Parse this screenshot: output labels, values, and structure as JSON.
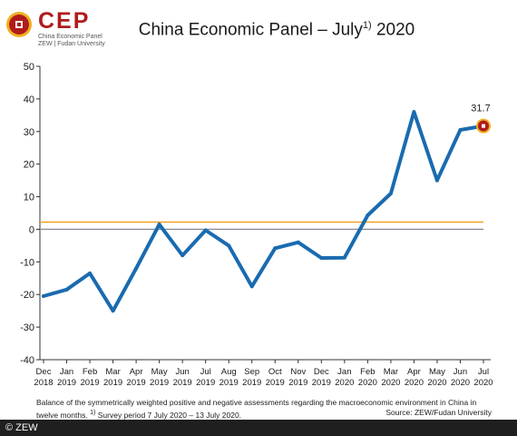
{
  "header": {
    "logo_text": "CEP",
    "logo_sub1": "China Economic Panel",
    "logo_sub2": "ZEW | Fudan University",
    "title": "China Economic Panel – July",
    "title_sup": "1)",
    "title_year": " 2020"
  },
  "chart_data": {
    "type": "line",
    "title": "China Economic Panel – July 2020",
    "categories": [
      [
        "Dec",
        "2018"
      ],
      [
        "Jan",
        "2019"
      ],
      [
        "Feb",
        "2019"
      ],
      [
        "Mar",
        "2019"
      ],
      [
        "Apr",
        "2019"
      ],
      [
        "May",
        "2019"
      ],
      [
        "Jun",
        "2019"
      ],
      [
        "Jul",
        "2019"
      ],
      [
        "Aug",
        "2019"
      ],
      [
        "Sep",
        "2019"
      ],
      [
        "Oct",
        "2019"
      ],
      [
        "Nov",
        "2019"
      ],
      [
        "Dec",
        "2019"
      ],
      [
        "Jan",
        "2020"
      ],
      [
        "Feb",
        "2020"
      ],
      [
        "Mar",
        "2020"
      ],
      [
        "Apr",
        "2020"
      ],
      [
        "May",
        "2020"
      ],
      [
        "Jun",
        "2020"
      ],
      [
        "Jul",
        "2020"
      ]
    ],
    "series": [
      {
        "values": [
          -20.5,
          -18.5,
          -13.5,
          -25.0,
          -12.0,
          1.5,
          -8.0,
          -0.3,
          -5.0,
          -17.5,
          -5.8,
          -4.0,
          -8.8,
          -8.7,
          4.3,
          11.0,
          36.0,
          15.0,
          30.5,
          31.7
        ],
        "color": "#1a6bb0"
      }
    ],
    "reference_line": {
      "value": 2.2,
      "color": "#f0a020"
    },
    "zero_line_color": "#8a8a9a",
    "highlight": {
      "index": 19,
      "label": "31.7",
      "fill": "#b01c1c",
      "ring": "#f0b020"
    },
    "ylim": [
      -40,
      50
    ],
    "yticks": [
      -40,
      -30,
      -20,
      -10,
      0,
      10,
      20,
      30,
      40,
      50
    ],
    "grid": false
  },
  "notes": {
    "text": "Balance of the symmetrically weighted positive and negative assessments regarding the macroeconomic environment in China in twelve months.",
    "footnote_mark": "1)",
    "footnote": "Survey period 7 July 2020 – 13 July 2020.",
    "source": "Source: ZEW/Fudan University"
  },
  "footer": {
    "copyright": "© ZEW"
  }
}
